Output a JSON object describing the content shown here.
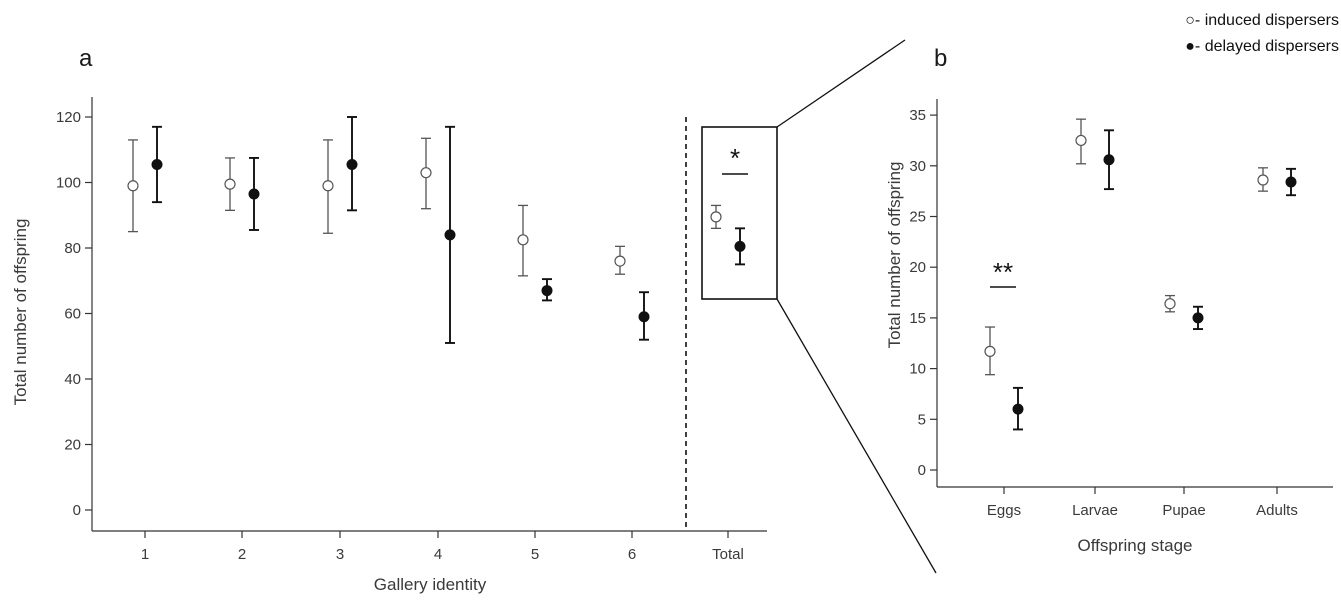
{
  "legend": {
    "induced": "○- induced dispersers",
    "delayed": "●- delayed dispersers"
  },
  "chart_data": [
    {
      "panel": "a",
      "type": "scatter",
      "xlabel": "Gallery identity",
      "ylabel": "Total number of offspring",
      "categories": [
        "1",
        "2",
        "3",
        "4",
        "5",
        "6",
        "Total"
      ],
      "yticks": [
        0,
        20,
        40,
        60,
        80,
        100,
        120
      ],
      "ylim": [
        -5,
        125
      ],
      "series": [
        {
          "name": "induced dispersers",
          "marker": "open-circle",
          "values": [
            99,
            99.5,
            99,
            103,
            82.5,
            76,
            89.5
          ],
          "lower": [
            85,
            91.5,
            84.5,
            92,
            71.5,
            72,
            86
          ],
          "upper": [
            113,
            107.5,
            113,
            113.5,
            93,
            80.5,
            93
          ]
        },
        {
          "name": "delayed dispersers",
          "marker": "filled-circle",
          "values": [
            105.5,
            96.5,
            105.5,
            84,
            67,
            59,
            80.5
          ],
          "lower": [
            94,
            85.5,
            91.5,
            51,
            64,
            52,
            75
          ],
          "upper": [
            117,
            107.5,
            120,
            117,
            70.5,
            66.5,
            86
          ]
        }
      ],
      "significance": "*"
    },
    {
      "panel": "b",
      "type": "scatter",
      "xlabel": "Offspring stage",
      "ylabel": "Total number of offspring",
      "categories": [
        "Eggs",
        "Larvae",
        "Pupae",
        "Adults"
      ],
      "yticks": [
        0,
        5,
        10,
        15,
        20,
        25,
        30,
        35
      ],
      "ylim": [
        -1,
        36
      ],
      "series": [
        {
          "name": "induced dispersers",
          "marker": "open-circle",
          "values": [
            11.7,
            32.5,
            16.4,
            28.6
          ],
          "lower": [
            9.4,
            30.2,
            15.6,
            27.5
          ],
          "upper": [
            14.1,
            34.6,
            17.2,
            29.8
          ]
        },
        {
          "name": "delayed dispersers",
          "marker": "filled-circle",
          "values": [
            6,
            30.6,
            15,
            28.4
          ],
          "lower": [
            4,
            27.7,
            13.9,
            27.1
          ],
          "upper": [
            8.1,
            33.5,
            16.1,
            29.7
          ]
        }
      ],
      "significance": "**"
    }
  ]
}
